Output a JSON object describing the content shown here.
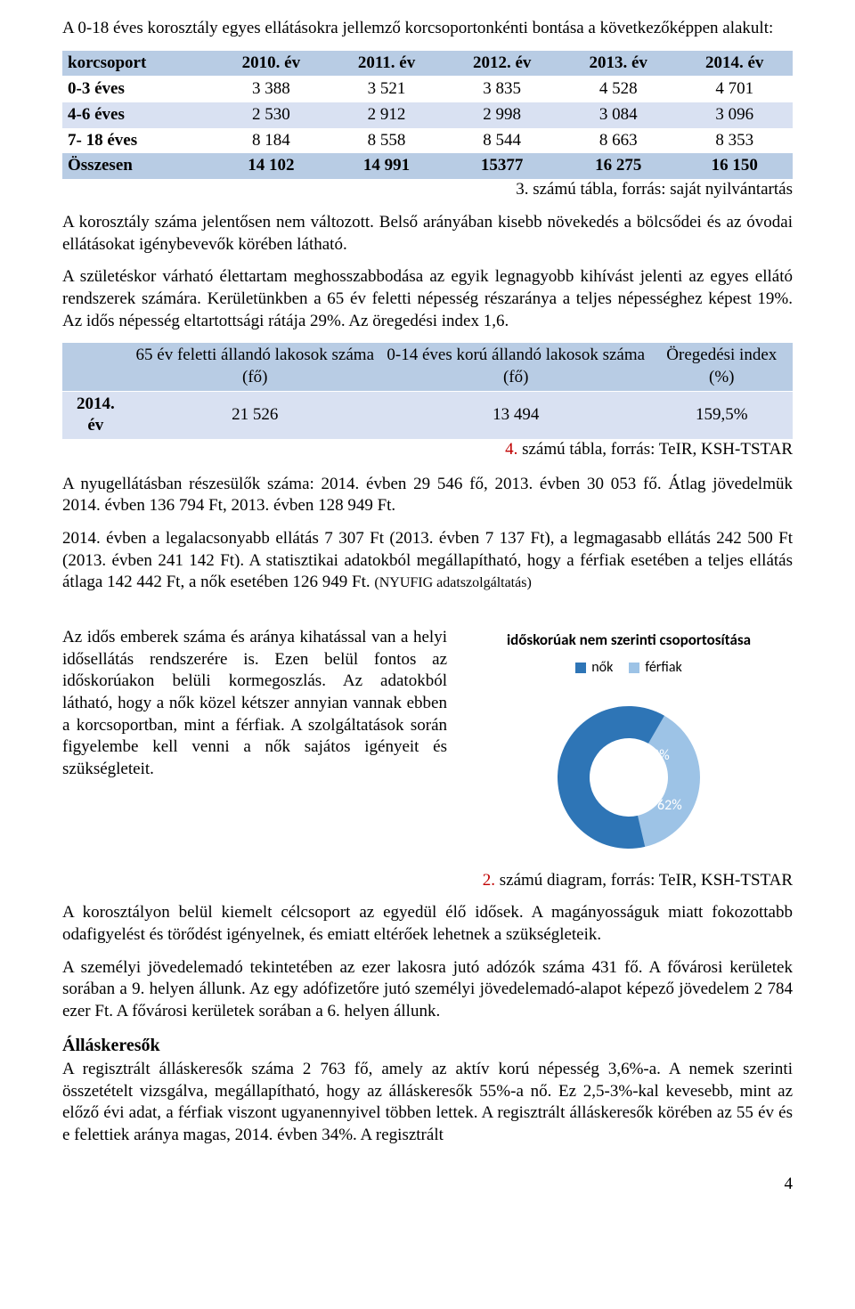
{
  "intro": {
    "text_before": "A 0-18 éves korosztály egyes ellátásokra jellemző korcsoportonkénti bontása a következőképpen alakult:"
  },
  "table1": {
    "header": [
      "korcsoport",
      "2010. év",
      "2011. év",
      "2012. év",
      "2013. év",
      "2014. év"
    ],
    "rows": [
      {
        "label": "0-3 éves",
        "v": [
          "3 388",
          "3 521",
          "3 835",
          "4 528",
          "4 701"
        ]
      },
      {
        "label": "4-6 éves",
        "v": [
          "2 530",
          "2 912",
          "2 998",
          "3 084",
          "3 096"
        ]
      },
      {
        "label": "7- 18 éves",
        "v": [
          "8 184",
          "8 558",
          "8 544",
          "8 663",
          "8 353"
        ]
      }
    ],
    "total": {
      "label": "Összesen",
      "v": [
        "14 102",
        "14 991",
        "15377",
        "16 275",
        "16 150"
      ]
    },
    "source_num": "3.",
    "source_text": "számú tábla, forrás: saját nyilvántartás"
  },
  "para_after_t1_1": "A korosztály száma jelentősen nem változott. Belső arányában kisebb növekedés a bölcsődei és az óvodai ellátásokat igénybevevők körében látható.",
  "para_after_t1_2": "A születéskor várható élettartam meghosszabbodása az egyik legnagyobb kihívást jelenti az egyes ellátó rendszerek számára. Kerületünkben a 65 év feletti népesség részaránya a teljes népességhez képest 19%. Az idős népesség eltartottsági rátája 29%. Az öregedési index 1,6.",
  "table2": {
    "header": [
      "",
      "65 év feletti állandó lakosok száma (fő)",
      "0-14 éves korú állandó lakosok száma (fő)",
      "Öregedési index (%)"
    ],
    "row": {
      "label": "2014. év",
      "v": [
        "21 526",
        "13 494",
        "159,5%"
      ]
    },
    "source_num": "4.",
    "source_text": "számú tábla, forrás: TeIR, KSH-TSTAR"
  },
  "para_pension": "A nyugellátásban részesülők száma: 2014. évben 29 546 fő, 2013. évben 30 053 fő. Átlag jövedelmük 2014. évben 136 794 Ft, 2013. évben 128 949 Ft.",
  "para_pension2a": "2014. évben a legalacsonyabb ellátás 7 307 Ft (2013. évben 7 137 Ft), a legmagasabb ellátás 242 500 Ft (2013. évben 241 142 Ft). A statisztikai adatokból megállapítható, hogy a férfiak esetében a teljes ellátás átlaga 142 442 Ft, a nők esetében 126 949 Ft. ",
  "para_pension2b": "(NYUFIG adatszolgáltatás)",
  "left_col_text": "Az idős emberek száma és aránya kihatással van a helyi idősellátás rendszerére is. Ezen belül fontos az időskorúakon belüli kormegoszlás. Az adatokból látható, hogy a nők közel kétszer annyian vannak ebben a korcsoportban, mint a férfiak. A szolgáltatások során figyelembe kell venni a nők sajátos igényeit és szükségleteit.",
  "chart": {
    "title": "időskorúak nem szerinti csoportosítása",
    "legend": [
      {
        "label": "nők",
        "color": "#2e75b6"
      },
      {
        "label": "férfiak",
        "color": "#9dc3e6"
      }
    ],
    "slices": [
      {
        "label": "38%",
        "value": 38,
        "color": "#9dc3e6"
      },
      {
        "label": "62%",
        "value": 62,
        "color": "#2e75b6"
      }
    ],
    "inner_ratio": 0.55,
    "source_num": "2.",
    "source_text": "számú diagram, forrás: TeIR, KSH-TSTAR"
  },
  "para_after_chart": "A korosztályon belül kiemelt célcsoport az egyedül élő idősek. A magányosságuk miatt fokozottabb odafigyelést és törődést igényelnek, és emiatt eltérőek lehetnek a szükségleteik.",
  "para_tax": "A személyi jövedelemadó tekintetében az ezer lakosra jutó adózók száma 431 fő. A fővárosi kerületek sorában a 9. helyen állunk. Az egy adófizetőre jutó személyi jövedelemadó-alapot képező jövedelem 2 784 ezer Ft. A fővárosi kerületek sorában a 6. helyen állunk.",
  "section_title": "Álláskeresők",
  "para_jobseekers": "A regisztrált álláskeresők száma 2 763 fő, amely az aktív korú népesség 3,6%-a. A nemek szerinti összetételt vizsgálva, megállapítható, hogy az álláskeresők 55%-a nő. Ez 2,5-3%-kal kevesebb, mint az előző évi adat, a férfiak viszont ugyanennyivel többen lettek. A regisztrált álláskeresők körében az 55 év és e felettiek aránya magas, 2014. évben 34%. A regisztrált",
  "page_number": "4"
}
